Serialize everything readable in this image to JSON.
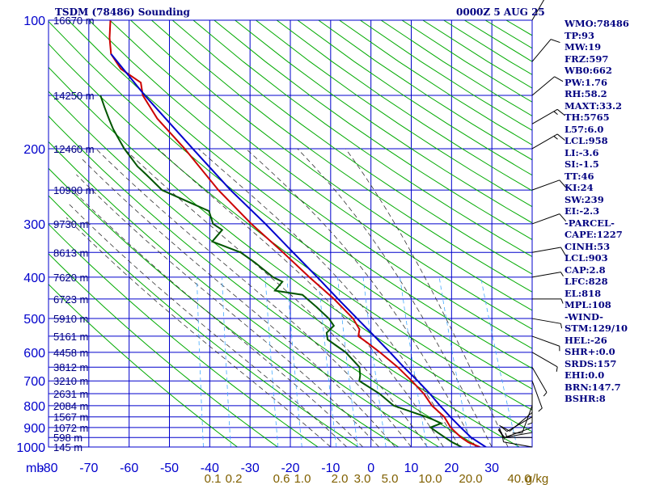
{
  "header": {
    "title": "TSDM (78486) Sounding",
    "datetime": "0000Z  5 AUG 25"
  },
  "indices": [
    "WMO:78486",
    "TP:93",
    "MW:19",
    "FRZ:597",
    "WB0:662",
    "PW:1.76",
    "RH:58.2",
    "MAXT:33.2",
    "TH:5765",
    "L57:6.0",
    "LCL:958",
    "LI:-3.6",
    "SI:-1.5",
    "TT:46",
    "KI:24",
    "SW:239",
    "EI:-2.3",
    "-PARCEL-",
    "CAPE:1227",
    "CINH:53",
    "LCL:903",
    "CAP:2.8",
    "LFC:828",
    "EL:818",
    "MPL:108",
    "-WIND-",
    "STM:129/10",
    "HEL:-26",
    "SHR+:0.0",
    "SRDS:157",
    "EHI:0.0",
    "BRN:147.7",
    "BSHR:8"
  ],
  "colors": {
    "grid": "#0000cc",
    "isotherm": "#0000aa",
    "dry_adiabat": "#00aa00",
    "moist_adiabat": "#333333",
    "mixing_ratio": "#44aaff",
    "temperature": "#cc0000",
    "dewpoint": "#005500",
    "parcel": "#0000cc",
    "label": "#000080",
    "mixing_label": "#806000",
    "wind": "#000000"
  },
  "chart_data": {
    "type": "line",
    "chart_kind": "Skew-T log-P sounding",
    "pressure_axis": {
      "unit": "mb",
      "scale": "log",
      "range": [
        1000,
        100
      ],
      "ticks": [
        100,
        200,
        300,
        400,
        500,
        600,
        700,
        800,
        900,
        1000
      ],
      "gridlines": [
        100,
        150,
        200,
        250,
        300,
        350,
        400,
        450,
        500,
        550,
        600,
        650,
        700,
        750,
        800,
        850,
        900,
        950,
        1000
      ]
    },
    "temperature_axis": {
      "unit": "C",
      "ticks": [
        -80,
        -70,
        -60,
        -50,
        -40,
        -30,
        -20,
        -10,
        0,
        10,
        20,
        30
      ]
    },
    "height_labels": [
      {
        "p": 100,
        "label": "16670 m"
      },
      {
        "p": 150,
        "label": "14250 m"
      },
      {
        "p": 200,
        "label": "12460 m"
      },
      {
        "p": 250,
        "label": "10990 m"
      },
      {
        "p": 300,
        "label": "9730 m"
      },
      {
        "p": 350,
        "label": "8613 m"
      },
      {
        "p": 400,
        "label": "7620 m"
      },
      {
        "p": 450,
        "label": "6723 m"
      },
      {
        "p": 500,
        "label": "5910 m"
      },
      {
        "p": 550,
        "label": "5161 m"
      },
      {
        "p": 600,
        "label": "4458 m"
      },
      {
        "p": 650,
        "label": "3812 m"
      },
      {
        "p": 700,
        "label": "3210 m"
      },
      {
        "p": 750,
        "label": "2631 m"
      },
      {
        "p": 800,
        "label": "2084 m"
      },
      {
        "p": 850,
        "label": "1567 m"
      },
      {
        "p": 900,
        "label": "1072 m"
      },
      {
        "p": 950,
        "label": "598 m"
      },
      {
        "p": 1000,
        "label": "145 m"
      }
    ],
    "mixing_ratio_labels": [
      "0.1",
      "0.2",
      "0.6",
      "1.0",
      "2.0",
      "3.0",
      "5.0",
      "10.0",
      "20.0",
      "40.0",
      "g/kg"
    ],
    "mixing_ratio_lines": [
      0.1,
      0.2,
      0.6,
      1.0,
      2.0,
      3.0,
      5.0,
      10.0,
      20.0,
      40.0
    ],
    "series": [
      {
        "name": "temperature",
        "points": [
          {
            "p": 1010,
            "t": 27.5
          },
          {
            "p": 1000,
            "t": 27.0
          },
          {
            "p": 975,
            "t": 24.0
          },
          {
            "p": 950,
            "t": 22.0
          },
          {
            "p": 925,
            "t": 20.5
          },
          {
            "p": 900,
            "t": 19.0
          },
          {
            "p": 850,
            "t": 17.0
          },
          {
            "p": 800,
            "t": 13.5
          },
          {
            "p": 750,
            "t": 11.0
          },
          {
            "p": 700,
            "t": 7.5
          },
          {
            "p": 650,
            "t": 3.5
          },
          {
            "p": 600,
            "t": -1.5
          },
          {
            "p": 570,
            "t": -5.0
          },
          {
            "p": 550,
            "t": -7.5
          },
          {
            "p": 530,
            "t": -7.5
          },
          {
            "p": 500,
            "t": -9.5
          },
          {
            "p": 450,
            "t": -15.0
          },
          {
            "p": 400,
            "t": -22.0
          },
          {
            "p": 350,
            "t": -29.5
          },
          {
            "p": 300,
            "t": -38.5
          },
          {
            "p": 250,
            "t": -48.0
          },
          {
            "p": 200,
            "t": -58.0
          },
          {
            "p": 170,
            "t": -66.0
          },
          {
            "p": 150,
            "t": -70.5
          },
          {
            "p": 140,
            "t": -71.5
          },
          {
            "p": 130,
            "t": -77.0
          },
          {
            "p": 120,
            "t": -80.0
          },
          {
            "p": 110,
            "t": -81.0
          },
          {
            "p": 100,
            "t": -81.5
          }
        ]
      },
      {
        "name": "dewpoint",
        "points": [
          {
            "p": 1010,
            "t": 23.5
          },
          {
            "p": 1000,
            "t": 22.5
          },
          {
            "p": 975,
            "t": 20.0
          },
          {
            "p": 950,
            "t": 18.0
          },
          {
            "p": 925,
            "t": 16.0
          },
          {
            "p": 900,
            "t": 14.0
          },
          {
            "p": 880,
            "t": 16.5
          },
          {
            "p": 860,
            "t": 14.0
          },
          {
            "p": 850,
            "t": 12.5
          },
          {
            "p": 800,
            "t": 4.0
          },
          {
            "p": 750,
            "t": 0.0
          },
          {
            "p": 700,
            "t": -5.5
          },
          {
            "p": 680,
            "t": -5.5
          },
          {
            "p": 650,
            "t": -6.0
          },
          {
            "p": 600,
            "t": -10.0
          },
          {
            "p": 560,
            "t": -15.0
          },
          {
            "p": 540,
            "t": -15.5
          },
          {
            "p": 520,
            "t": -14.0
          },
          {
            "p": 500,
            "t": -15.5
          },
          {
            "p": 470,
            "t": -19.0
          },
          {
            "p": 440,
            "t": -23.0
          },
          {
            "p": 430,
            "t": -30.0
          },
          {
            "p": 410,
            "t": -28.5
          },
          {
            "p": 400,
            "t": -31.0
          },
          {
            "p": 370,
            "t": -36.0
          },
          {
            "p": 350,
            "t": -40.0
          },
          {
            "p": 330,
            "t": -47.5
          },
          {
            "p": 310,
            "t": -45.5
          },
          {
            "p": 300,
            "t": -48.0
          },
          {
            "p": 280,
            "t": -49.5
          },
          {
            "p": 270,
            "t": -53.5
          },
          {
            "p": 250,
            "t": -62.0
          },
          {
            "p": 230,
            "t": -66.5
          },
          {
            "p": 220,
            "t": -69.0
          },
          {
            "p": 200,
            "t": -73.0
          },
          {
            "p": 180,
            "t": -76.5
          },
          {
            "p": 170,
            "t": -78.0
          },
          {
            "p": 160,
            "t": -79.5
          },
          {
            "p": 150,
            "t": -81.0
          }
        ]
      },
      {
        "name": "parcel",
        "points": [
          {
            "p": 1010,
            "t": 29.0
          },
          {
            "p": 1000,
            "t": 28.5
          },
          {
            "p": 950,
            "t": 24.5
          },
          {
            "p": 900,
            "t": 21.5
          },
          {
            "p": 850,
            "t": 18.5
          },
          {
            "p": 800,
            "t": 15.5
          },
          {
            "p": 750,
            "t": 12.5
          },
          {
            "p": 700,
            "t": 9.0
          },
          {
            "p": 650,
            "t": 5.0
          },
          {
            "p": 600,
            "t": 1.0
          },
          {
            "p": 550,
            "t": -3.5
          },
          {
            "p": 500,
            "t": -8.5
          },
          {
            "p": 450,
            "t": -14.0
          },
          {
            "p": 400,
            "t": -20.0
          },
          {
            "p": 350,
            "t": -27.0
          },
          {
            "p": 300,
            "t": -35.0
          },
          {
            "p": 250,
            "t": -45.0
          },
          {
            "p": 200,
            "t": -56.0
          },
          {
            "p": 150,
            "t": -70.0
          },
          {
            "p": 120,
            "t": -80.0
          }
        ]
      }
    ],
    "wind_barbs": [
      {
        "p": 1000,
        "dir": 280,
        "spd": 10
      },
      {
        "p": 950,
        "dir": 270,
        "spd": 15
      },
      {
        "p": 925,
        "dir": 260,
        "spd": 10
      },
      {
        "p": 900,
        "dir": 250,
        "spd": 10
      },
      {
        "p": 850,
        "dir": 240,
        "spd": 10
      },
      {
        "p": 830,
        "dir": 230,
        "spd": 10
      },
      {
        "p": 800,
        "dir": 200,
        "spd": 10
      },
      {
        "p": 750,
        "dir": 180,
        "spd": 5
      },
      {
        "p": 700,
        "dir": 160,
        "spd": 5
      },
      {
        "p": 650,
        "dir": 150,
        "spd": 5
      },
      {
        "p": 600,
        "dir": 120,
        "spd": 5
      },
      {
        "p": 550,
        "dir": 110,
        "spd": 5
      },
      {
        "p": 500,
        "dir": 100,
        "spd": 5
      },
      {
        "p": 450,
        "dir": 90,
        "spd": 5
      },
      {
        "p": 400,
        "dir": 80,
        "spd": 5
      },
      {
        "p": 350,
        "dir": 80,
        "spd": 10
      },
      {
        "p": 300,
        "dir": 70,
        "spd": 10
      },
      {
        "p": 250,
        "dir": 70,
        "spd": 10
      },
      {
        "p": 200,
        "dir": 60,
        "spd": 15
      },
      {
        "p": 175,
        "dir": 60,
        "spd": 15
      },
      {
        "p": 150,
        "dir": 50,
        "spd": 10
      },
      {
        "p": 125,
        "dir": 40,
        "spd": 10
      },
      {
        "p": 100,
        "dir": 30,
        "spd": 10
      }
    ]
  }
}
